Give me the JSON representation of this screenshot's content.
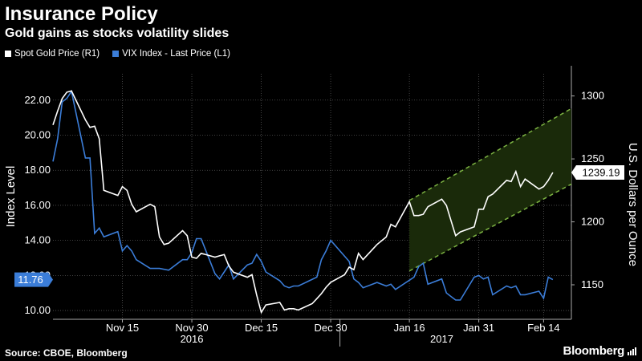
{
  "title": "Insurance Policy",
  "subtitle": "Gold gains as stocks volatility slides",
  "source": "Source: CBOE, Bloomberg",
  "brand": "Bloomberg",
  "colors": {
    "gold": "#ffffff",
    "vix": "#3b7dd8",
    "channel": "#7cb342",
    "channel_fill": "#1a2a0a",
    "background": "#000000"
  },
  "chart_data": {
    "type": "line",
    "left_axis_label": "Index Level",
    "right_axis_label": "U.S. Dollars per Ounce",
    "left_ylim": [
      9.5,
      23.5
    ],
    "right_ylim": [
      1122.6,
      1317.6
    ],
    "left_ticks": [
      "22.00",
      "20.00",
      "18.00",
      "16.00",
      "14.00",
      "12.00",
      "10.00"
    ],
    "left_tick_values": [
      22,
      20,
      18,
      16,
      14,
      12,
      10
    ],
    "right_ticks": [
      "1300",
      "1250",
      "1200",
      "1150"
    ],
    "right_tick_values": [
      1300,
      1250,
      1200,
      1150
    ],
    "x_range": [
      "2016-10-31",
      "2017-02-20"
    ],
    "x_ticks": [
      {
        "date": "2016-11-15",
        "label": "Nov 15"
      },
      {
        "date": "2016-11-30",
        "label": "Nov 30"
      },
      {
        "date": "2016-12-15",
        "label": "Dec 15"
      },
      {
        "date": "2016-12-30",
        "label": "Dec 30"
      },
      {
        "date": "2017-01-16",
        "label": "Jan 16"
      },
      {
        "date": "2017-01-31",
        "label": "Jan 31"
      },
      {
        "date": "2017-02-14",
        "label": "Feb 14"
      }
    ],
    "year_labels": [
      {
        "date": "2016-11-30",
        "label": "2016"
      },
      {
        "date": "2017-01-23",
        "label": "2017"
      }
    ],
    "year_divider_date": "2017-01-01",
    "grid": true,
    "legend_position": "top-left",
    "series": [
      {
        "name": "Spot Gold Price (R1)",
        "axis": "right",
        "last_value_label": "1239.19",
        "points": [
          [
            "2016-10-31",
            1277
          ],
          [
            "2016-11-01",
            1288
          ],
          [
            "2016-11-02",
            1298
          ],
          [
            "2016-11-03",
            1303
          ],
          [
            "2016-11-04",
            1304
          ],
          [
            "2016-11-07",
            1281
          ],
          [
            "2016-11-08",
            1275
          ],
          [
            "2016-11-09",
            1276
          ],
          [
            "2016-11-10",
            1266
          ],
          [
            "2016-11-11",
            1225
          ],
          [
            "2016-11-14",
            1221
          ],
          [
            "2016-11-15",
            1228
          ],
          [
            "2016-11-16",
            1225
          ],
          [
            "2016-11-17",
            1214
          ],
          [
            "2016-11-18",
            1208
          ],
          [
            "2016-11-21",
            1214
          ],
          [
            "2016-11-22",
            1212
          ],
          [
            "2016-11-23",
            1188
          ],
          [
            "2016-11-24",
            1182
          ],
          [
            "2016-11-25",
            1183
          ],
          [
            "2016-11-28",
            1193
          ],
          [
            "2016-11-29",
            1189
          ],
          [
            "2016-11-30",
            1172
          ],
          [
            "2016-12-01",
            1171
          ],
          [
            "2016-12-02",
            1175
          ],
          [
            "2016-12-05",
            1172
          ],
          [
            "2016-12-06",
            1173
          ],
          [
            "2016-12-07",
            1174
          ],
          [
            "2016-12-08",
            1165
          ],
          [
            "2016-12-09",
            1160
          ],
          [
            "2016-12-12",
            1156
          ],
          [
            "2016-12-13",
            1158
          ],
          [
            "2016-12-14",
            1142
          ],
          [
            "2016-12-15",
            1128
          ],
          [
            "2016-12-16",
            1134
          ],
          [
            "2016-12-19",
            1136
          ],
          [
            "2016-12-20",
            1130
          ],
          [
            "2016-12-21",
            1131
          ],
          [
            "2016-12-22",
            1131
          ],
          [
            "2016-12-23",
            1130
          ],
          [
            "2016-12-26",
            1135
          ],
          [
            "2016-12-27",
            1139
          ],
          [
            "2016-12-28",
            1143
          ],
          [
            "2016-12-29",
            1148
          ],
          [
            "2016-12-30",
            1152
          ],
          [
            "2017-01-02",
            1158
          ],
          [
            "2017-01-03",
            1164
          ],
          [
            "2017-01-04",
            1162
          ],
          [
            "2017-01-05",
            1175
          ],
          [
            "2017-01-06",
            1170
          ],
          [
            "2017-01-09",
            1182
          ],
          [
            "2017-01-10",
            1185
          ],
          [
            "2017-01-11",
            1188
          ],
          [
            "2017-01-12",
            1198
          ],
          [
            "2017-01-13",
            1196
          ],
          [
            "2017-01-16",
            1216
          ],
          [
            "2017-01-17",
            1205
          ],
          [
            "2017-01-18",
            1205
          ],
          [
            "2017-01-19",
            1206
          ],
          [
            "2017-01-20",
            1212
          ],
          [
            "2017-01-23",
            1218
          ],
          [
            "2017-01-24",
            1213
          ],
          [
            "2017-01-25",
            1201
          ],
          [
            "2017-01-26",
            1189
          ],
          [
            "2017-01-27",
            1192
          ],
          [
            "2017-01-30",
            1196
          ],
          [
            "2017-01-31",
            1210
          ],
          [
            "2017-02-01",
            1210
          ],
          [
            "2017-02-02",
            1220
          ],
          [
            "2017-02-03",
            1222
          ],
          [
            "2017-02-06",
            1233
          ],
          [
            "2017-02-07",
            1232
          ],
          [
            "2017-02-08",
            1240
          ],
          [
            "2017-02-09",
            1228
          ],
          [
            "2017-02-10",
            1234
          ],
          [
            "2017-02-13",
            1226
          ],
          [
            "2017-02-14",
            1228
          ],
          [
            "2017-02-15",
            1233
          ],
          [
            "2017-02-16",
            1239.19
          ]
        ]
      },
      {
        "name": "VIX Index - Last Price (L1)",
        "axis": "left",
        "last_value_label": "11.76",
        "points": [
          [
            "2016-10-31",
            18.5
          ],
          [
            "2016-11-01",
            19.8
          ],
          [
            "2016-11-02",
            21.9
          ],
          [
            "2016-11-03",
            22.1
          ],
          [
            "2016-11-04",
            22.5
          ],
          [
            "2016-11-07",
            18.7
          ],
          [
            "2016-11-08",
            18.7
          ],
          [
            "2016-11-09",
            14.4
          ],
          [
            "2016-11-10",
            14.7
          ],
          [
            "2016-11-11",
            14.2
          ],
          [
            "2016-11-14",
            14.5
          ],
          [
            "2016-11-15",
            13.4
          ],
          [
            "2016-11-16",
            13.7
          ],
          [
            "2016-11-17",
            13.4
          ],
          [
            "2016-11-18",
            12.9
          ],
          [
            "2016-11-21",
            12.4
          ],
          [
            "2016-11-22",
            12.4
          ],
          [
            "2016-11-23",
            12.4
          ],
          [
            "2016-11-25",
            12.3
          ],
          [
            "2016-11-28",
            12.9
          ],
          [
            "2016-11-29",
            12.9
          ],
          [
            "2016-11-30",
            13.3
          ],
          [
            "2016-12-01",
            14.1
          ],
          [
            "2016-12-02",
            14.1
          ],
          [
            "2016-12-05",
            12.1
          ],
          [
            "2016-12-06",
            11.8
          ],
          [
            "2016-12-07",
            12.2
          ],
          [
            "2016-12-08",
            12.6
          ],
          [
            "2016-12-09",
            11.8
          ],
          [
            "2016-12-12",
            12.6
          ],
          [
            "2016-12-13",
            12.7
          ],
          [
            "2016-12-14",
            13.2
          ],
          [
            "2016-12-15",
            12.8
          ],
          [
            "2016-12-16",
            12.2
          ],
          [
            "2016-12-19",
            11.7
          ],
          [
            "2016-12-20",
            11.4
          ],
          [
            "2016-12-21",
            11.3
          ],
          [
            "2016-12-22",
            11.4
          ],
          [
            "2016-12-23",
            11.4
          ],
          [
            "2016-12-27",
            11.9
          ],
          [
            "2016-12-28",
            12.9
          ],
          [
            "2016-12-29",
            13.4
          ],
          [
            "2016-12-30",
            14.0
          ],
          [
            "2017-01-03",
            12.8
          ],
          [
            "2017-01-04",
            11.8
          ],
          [
            "2017-01-05",
            11.6
          ],
          [
            "2017-01-06",
            11.3
          ],
          [
            "2017-01-09",
            11.6
          ],
          [
            "2017-01-10",
            11.5
          ],
          [
            "2017-01-11",
            11.4
          ],
          [
            "2017-01-12",
            11.5
          ],
          [
            "2017-01-13",
            11.2
          ],
          [
            "2017-01-17",
            11.9
          ],
          [
            "2017-01-18",
            12.5
          ],
          [
            "2017-01-19",
            12.7
          ],
          [
            "2017-01-20",
            11.5
          ],
          [
            "2017-01-23",
            11.8
          ],
          [
            "2017-01-24",
            11.0
          ],
          [
            "2017-01-25",
            10.8
          ],
          [
            "2017-01-26",
            10.6
          ],
          [
            "2017-01-27",
            10.6
          ],
          [
            "2017-01-30",
            11.9
          ],
          [
            "2017-01-31",
            12.0
          ],
          [
            "2017-02-01",
            11.8
          ],
          [
            "2017-02-02",
            11.9
          ],
          [
            "2017-02-03",
            10.9
          ],
          [
            "2017-02-06",
            11.4
          ],
          [
            "2017-02-07",
            11.3
          ],
          [
            "2017-02-08",
            11.4
          ],
          [
            "2017-02-09",
            10.9
          ],
          [
            "2017-02-10",
            10.9
          ],
          [
            "2017-02-13",
            11.1
          ],
          [
            "2017-02-14",
            10.7
          ],
          [
            "2017-02-15",
            11.9
          ],
          [
            "2017-02-16",
            11.76
          ]
        ]
      }
    ],
    "trend_channel": {
      "axis": "right",
      "start_date": "2017-01-16",
      "end_date": "2017-02-20",
      "upper": [
        1217,
        1290
      ],
      "lower": [
        1161,
        1230
      ]
    }
  }
}
